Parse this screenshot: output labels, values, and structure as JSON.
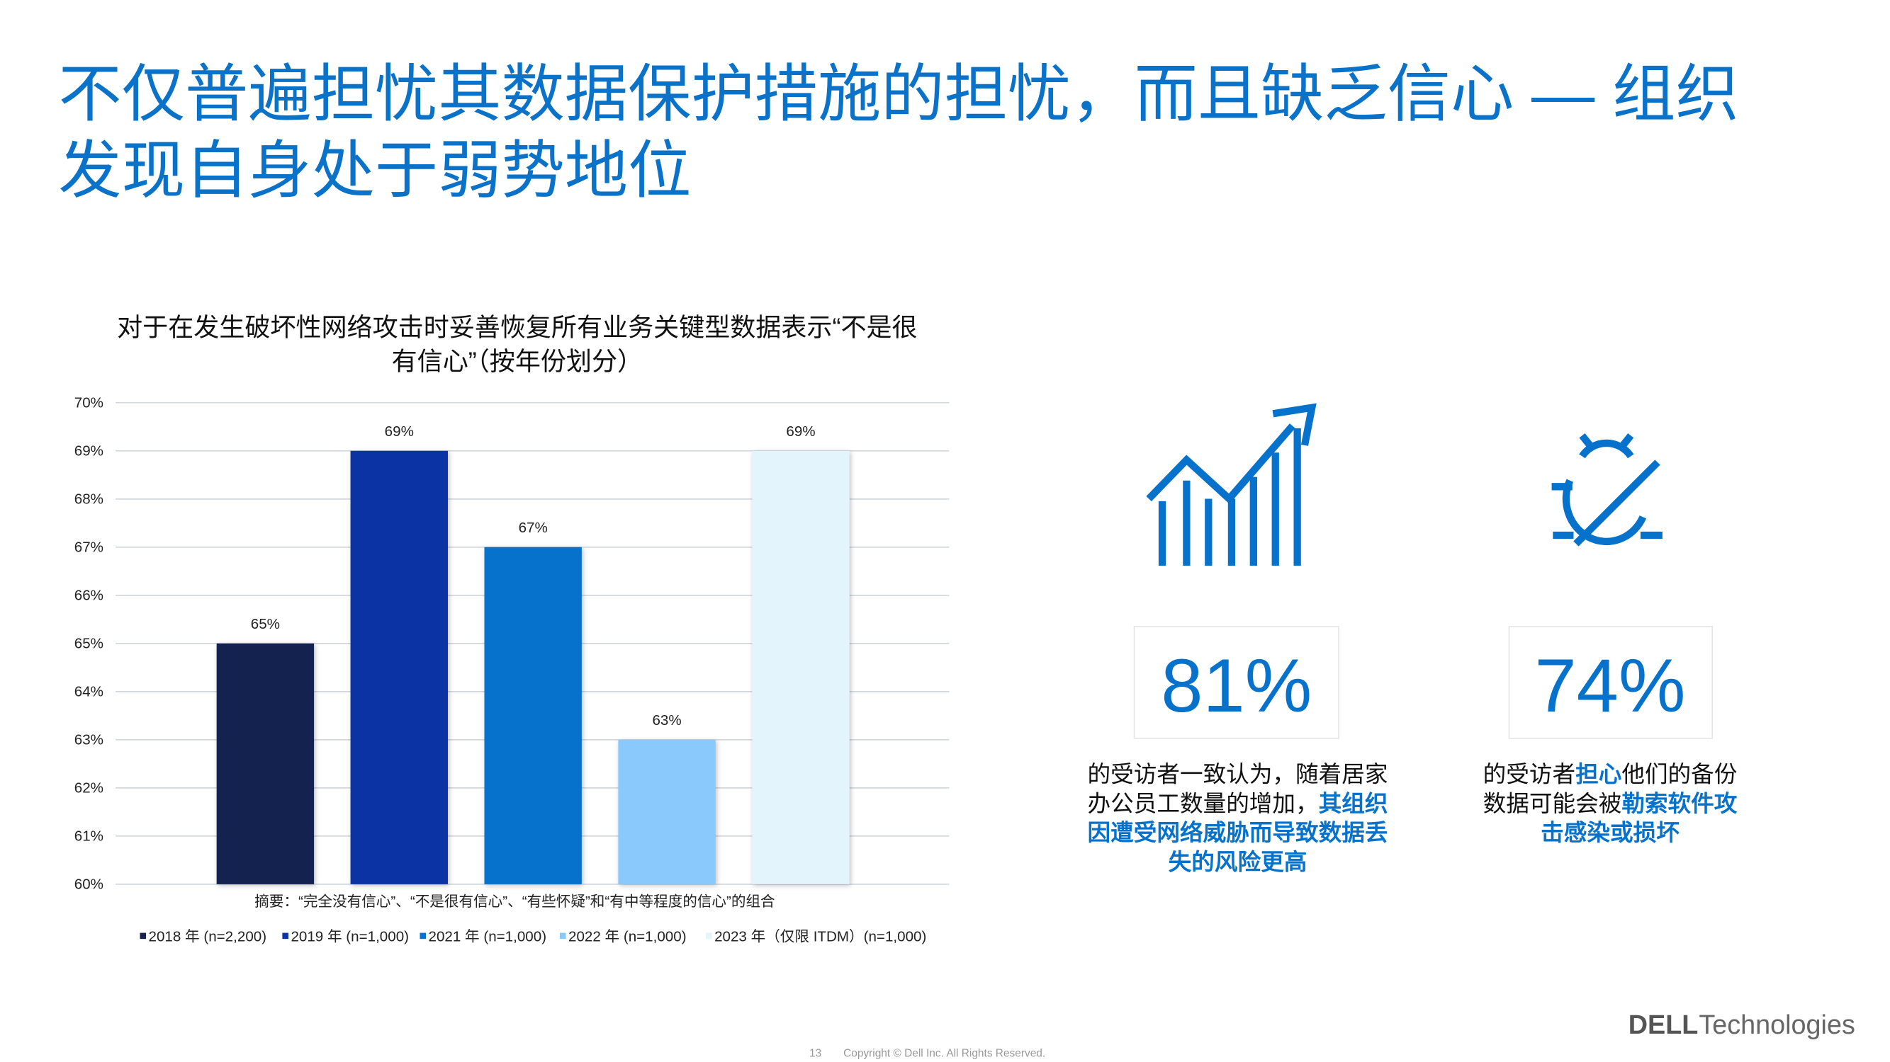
{
  "header": {
    "title_lines": [
      "不仅普遍担忧其数据保护措施的担忧，而且缺乏信心 — 组织",
      "发现自身处于弱势地位"
    ]
  },
  "chart_data": {
    "type": "bar",
    "title_lines": [
      "对于在发生破坏性网络攻击时妥善恢复所有业务关键型数据表示“不是很",
      "有信心”（按年份划分）"
    ],
    "categories": [
      null
    ],
    "series": [
      {
        "name": "2018 年 (n=2,200)",
        "color": "#13224f",
        "values": [
          65
        ],
        "value_labels": [
          "65%"
        ]
      },
      {
        "name": "2019 年 (n=1,000)",
        "color": "#0b33a3",
        "values": [
          69
        ],
        "value_labels": [
          "69%"
        ]
      },
      {
        "name": "2021 年 (n=1,000)",
        "color": "#0672cb",
        "values": [
          67
        ],
        "value_labels": [
          "67%"
        ]
      },
      {
        "name": "2022 年 (n=1,000)",
        "color": "#89c9fb",
        "values": [
          63
        ],
        "value_labels": [
          "63%"
        ]
      },
      {
        "name": "2023 年（仅限 ITDM）(n=1,000)",
        "color": "#e3f4fc",
        "values": [
          69
        ],
        "value_labels": [
          "69%"
        ]
      }
    ],
    "ylim": [
      60,
      70
    ],
    "yticks": [
      {
        "value": 60,
        "label": "60%"
      },
      {
        "value": 61,
        "label": "61%"
      },
      {
        "value": 62,
        "label": "62%"
      },
      {
        "value": 63,
        "label": "63%"
      },
      {
        "value": 64,
        "label": "64%"
      },
      {
        "value": 65,
        "label": "65%"
      },
      {
        "value": 66,
        "label": "66%"
      },
      {
        "value": 67,
        "label": "67%"
      },
      {
        "value": 68,
        "label": "68%"
      },
      {
        "value": 69,
        "label": "69%"
      },
      {
        "value": 70,
        "label": "70%"
      }
    ],
    "grid": true,
    "annotation": "摘要：“完全没有信心”、“不是很有信心”、“有些怀疑”和“有中等程度的信心”的组合",
    "legend": "bottom"
  },
  "stats": [
    {
      "value": "81%",
      "caption_lines": [
        [
          {
            "text": "的受访者一致认为，随着居家"
          }
        ],
        [
          {
            "text": "办公员工数量的增加，"
          },
          {
            "text": "其组织",
            "emphasis": true
          }
        ],
        [
          {
            "text": "因遭受网络威胁而导致数据丢",
            "emphasis": true
          }
        ],
        [
          {
            "text": "失的风险更高",
            "emphasis": true
          }
        ]
      ]
    },
    {
      "value": "74%",
      "caption_lines": [
        [
          {
            "text": "的受访者"
          },
          {
            "text": "担心",
            "emphasis": true
          },
          {
            "text": "他们的备份"
          }
        ],
        [
          {
            "text": "数据可能会被"
          },
          {
            "text": "勒索软件攻",
            "emphasis": true
          }
        ],
        [
          {
            "text": "击感染或损坏",
            "emphasis": true
          }
        ]
      ]
    }
  ],
  "footer": {
    "page": "13",
    "copyright": "Copyright © Dell Inc. All Rights Reserved.",
    "logo": [
      "DELL",
      "Technologies"
    ]
  }
}
